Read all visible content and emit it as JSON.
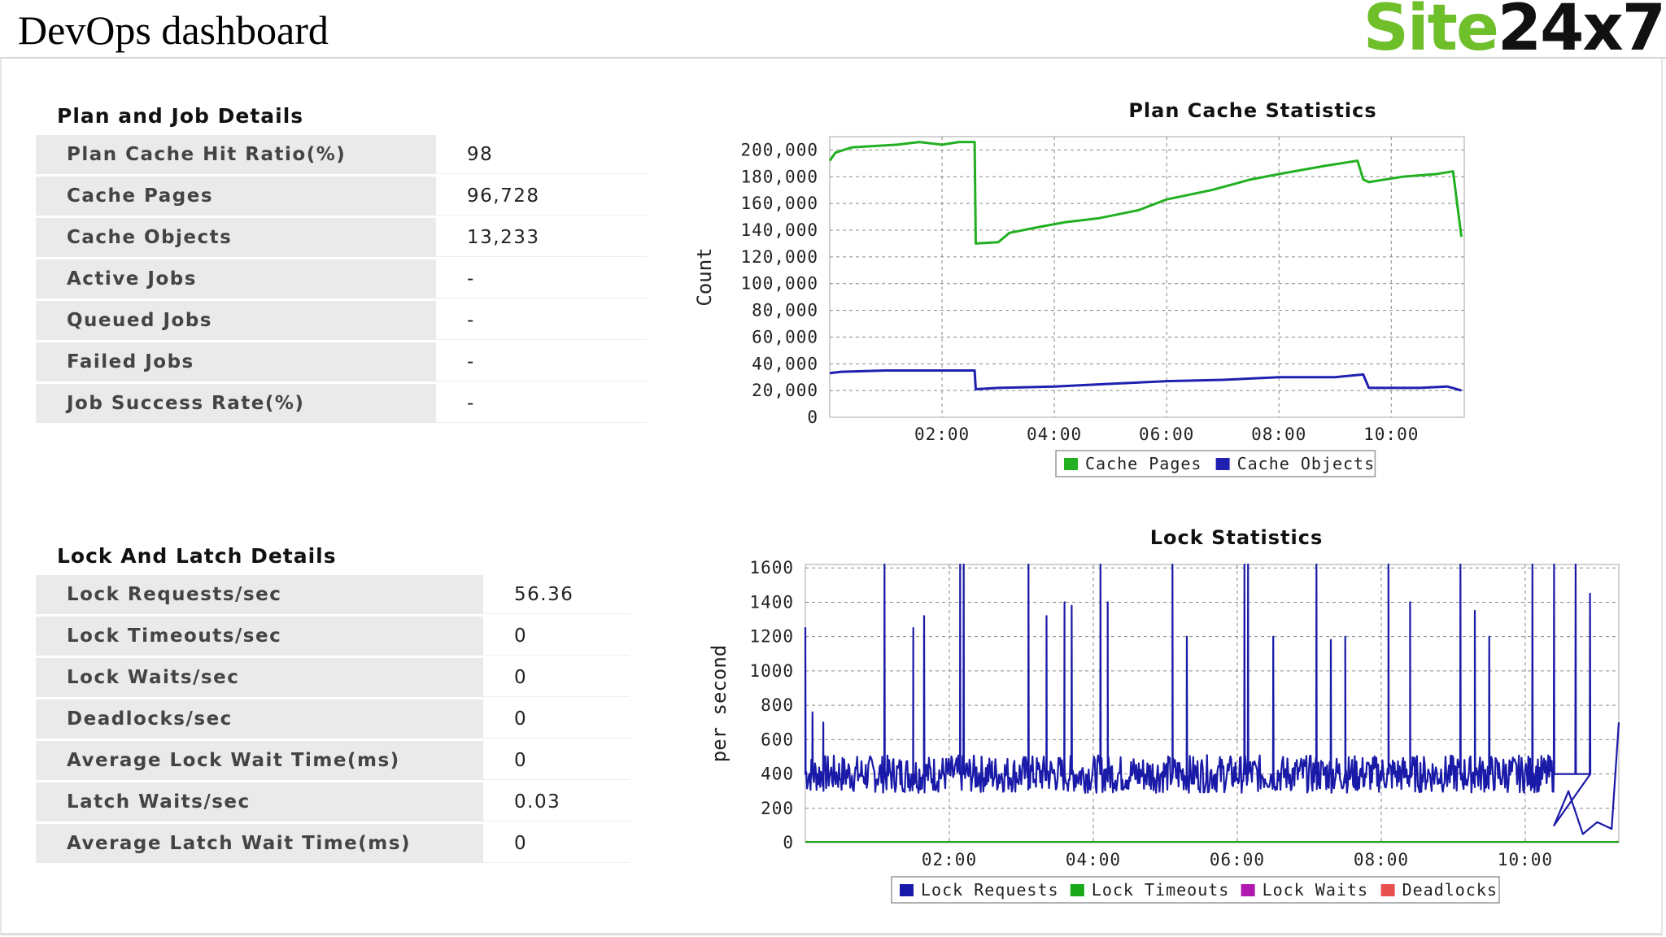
{
  "header": {
    "title": "DevOps dashboard",
    "logo_part1": "Site",
    "logo_part2": "24x7"
  },
  "plan_job": {
    "title": "Plan and Job Details",
    "rows": [
      {
        "label": "Plan Cache Hit Ratio(%)",
        "value": "98"
      },
      {
        "label": "Cache Pages",
        "value": "96,728"
      },
      {
        "label": "Cache Objects",
        "value": "13,233"
      },
      {
        "label": "Active Jobs",
        "value": "-"
      },
      {
        "label": "Queued Jobs",
        "value": "-"
      },
      {
        "label": "Failed Jobs",
        "value": "-"
      },
      {
        "label": "Job Success Rate(%)",
        "value": "-"
      }
    ]
  },
  "lock_latch": {
    "title": "Lock And Latch Details",
    "rows": [
      {
        "label": "Lock Requests/sec",
        "value": "56.36"
      },
      {
        "label": "Lock Timeouts/sec",
        "value": "0"
      },
      {
        "label": "Lock Waits/sec",
        "value": "0"
      },
      {
        "label": "Deadlocks/sec",
        "value": "0"
      },
      {
        "label": "Average Lock Wait Time(ms)",
        "value": "0"
      },
      {
        "label": "Latch Waits/sec",
        "value": "0.03"
      },
      {
        "label": "Average Latch Wait Time(ms)",
        "value": "0"
      }
    ]
  },
  "chart_data": [
    {
      "type": "line",
      "title": "Plan Cache Statistics",
      "xlabel": "",
      "ylabel": "Count",
      "xlim": [
        0,
        11.3
      ],
      "ylim": [
        0,
        210000
      ],
      "x_ticks": [
        "02:00",
        "04:00",
        "06:00",
        "08:00",
        "10:00"
      ],
      "x_tick_values": [
        2,
        4,
        6,
        8,
        10
      ],
      "y_ticks": [
        "0",
        "20,000",
        "40,000",
        "60,000",
        "80,000",
        "100,000",
        "120,000",
        "140,000",
        "160,000",
        "180,000",
        "200,000"
      ],
      "y_tick_values": [
        0,
        20000,
        40000,
        60000,
        80000,
        100000,
        120000,
        140000,
        160000,
        180000,
        200000
      ],
      "grid": true,
      "legend": "bottom",
      "series": [
        {
          "name": "Cache Pages",
          "color": "#22b022",
          "points": [
            [
              0,
              192000
            ],
            [
              0.1,
              198000
            ],
            [
              0.4,
              202000
            ],
            [
              1.2,
              204000
            ],
            [
              1.6,
              206000
            ],
            [
              2.0,
              204000
            ],
            [
              2.3,
              206000
            ],
            [
              2.58,
              206000
            ],
            [
              2.6,
              130000
            ],
            [
              3.0,
              131000
            ],
            [
              3.2,
              138000
            ],
            [
              3.8,
              143000
            ],
            [
              4.2,
              146000
            ],
            [
              4.8,
              149000
            ],
            [
              5.5,
              155000
            ],
            [
              6.0,
              163000
            ],
            [
              6.8,
              170000
            ],
            [
              7.5,
              178000
            ],
            [
              8.0,
              182000
            ],
            [
              8.8,
              188000
            ],
            [
              9.4,
              192000
            ],
            [
              9.5,
              178000
            ],
            [
              9.6,
              176000
            ],
            [
              10.2,
              180000
            ],
            [
              10.8,
              182000
            ],
            [
              11.1,
              184000
            ],
            [
              11.25,
              135000
            ]
          ]
        },
        {
          "name": "Cache Objects",
          "color": "#2020b0",
          "points": [
            [
              0,
              33000
            ],
            [
              0.2,
              34000
            ],
            [
              1.0,
              35000
            ],
            [
              2.0,
              35000
            ],
            [
              2.58,
              35000
            ],
            [
              2.6,
              21000
            ],
            [
              3.0,
              22000
            ],
            [
              4.0,
              23000
            ],
            [
              5.0,
              25000
            ],
            [
              6.0,
              27000
            ],
            [
              7.0,
              28000
            ],
            [
              8.0,
              30000
            ],
            [
              9.0,
              30000
            ],
            [
              9.5,
              32000
            ],
            [
              9.6,
              22000
            ],
            [
              10.5,
              22000
            ],
            [
              11.0,
              23000
            ],
            [
              11.25,
              20000
            ]
          ]
        }
      ]
    },
    {
      "type": "line",
      "title": "Lock Statistics",
      "xlabel": "",
      "ylabel": "per second",
      "xlim": [
        0,
        11.3
      ],
      "ylim": [
        0,
        1620
      ],
      "x_ticks": [
        "02:00",
        "04:00",
        "06:00",
        "08:00",
        "10:00"
      ],
      "x_tick_values": [
        2,
        4,
        6,
        8,
        10
      ],
      "y_ticks": [
        "0",
        "200",
        "400",
        "600",
        "800",
        "1000",
        "1200",
        "1400",
        "1600"
      ],
      "y_tick_values": [
        0,
        200,
        400,
        600,
        800,
        1000,
        1200,
        1400,
        1600
      ],
      "grid": true,
      "legend": "bottom",
      "series": [
        {
          "name": "Lock Requests",
          "color": "#1a1aa8",
          "baseline": 400,
          "noise": 110,
          "spikes": [
            [
              0.0,
              1250
            ],
            [
              0.1,
              760
            ],
            [
              0.25,
              700
            ],
            [
              1.1,
              1620
            ],
            [
              1.5,
              1250
            ],
            [
              1.65,
              1320
            ],
            [
              2.15,
              1620
            ],
            [
              2.2,
              1620
            ],
            [
              3.1,
              1620
            ],
            [
              3.35,
              1320
            ],
            [
              3.6,
              1400
            ],
            [
              3.7,
              1380
            ],
            [
              4.1,
              1620
            ],
            [
              4.2,
              1400
            ],
            [
              5.1,
              1620
            ],
            [
              5.3,
              1200
            ],
            [
              6.1,
              1620
            ],
            [
              6.15,
              1620
            ],
            [
              6.5,
              1200
            ],
            [
              7.1,
              1620
            ],
            [
              7.3,
              1180
            ],
            [
              7.5,
              1200
            ],
            [
              8.1,
              1620
            ],
            [
              8.4,
              1400
            ],
            [
              9.1,
              1620
            ],
            [
              9.3,
              1350
            ],
            [
              9.5,
              1200
            ],
            [
              10.1,
              1620
            ],
            [
              10.4,
              1620
            ],
            [
              10.7,
              1620
            ],
            [
              10.9,
              1450
            ]
          ],
          "tail": [
            [
              10.4,
              100
            ],
            [
              10.6,
              300
            ],
            [
              10.8,
              50
            ],
            [
              11.0,
              120
            ],
            [
              11.2,
              80
            ],
            [
              11.3,
              700
            ]
          ]
        },
        {
          "name": "Lock Timeouts",
          "color": "#18a818",
          "values": [
            0
          ]
        },
        {
          "name": "Lock Waits",
          "color": "#b018b0",
          "values": [
            0
          ]
        },
        {
          "name": "Deadlocks",
          "color": "#e85050",
          "values": [
            0
          ]
        }
      ]
    }
  ]
}
